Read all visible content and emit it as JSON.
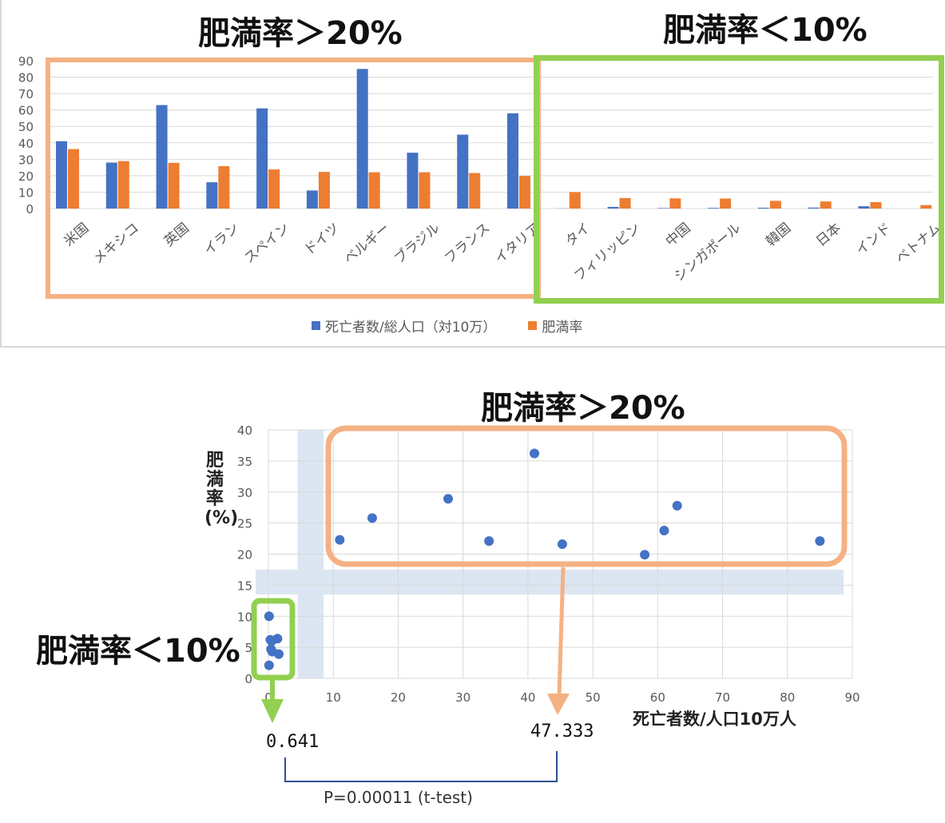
{
  "top_labels": {
    "high": "肥満率＞20%",
    "low": "肥満率＜10%"
  },
  "legend": {
    "deaths": "死亡者数/総人口（対10万）",
    "obesity": "肥満率"
  },
  "scatter_labels": {
    "high": "肥満率＞20%",
    "low": "肥満率＜10%",
    "mean_low": "0.641",
    "mean_high": "47.333",
    "pvalue": "P=0.00011 (t-test)"
  },
  "colors": {
    "deaths": "#4472c4",
    "obesity": "#ed7d31",
    "high_box": "#f4b183",
    "low_box": "#92d050",
    "band": "#dce6f2",
    "grid": "#d9d9d9",
    "tick_text": "#595959"
  },
  "chart_data": [
    {
      "type": "bar",
      "categories": [
        "米国",
        "メキシコ",
        "英国",
        "イラン",
        "スペイン",
        "ドイツ",
        "ベルギー",
        "ブラジル",
        "フランス",
        "イタリア",
        "タイ",
        "フィリッピン",
        "中国",
        "シンガポール",
        "韓国",
        "日本",
        "インド",
        "ベトナム"
      ],
      "series": [
        {
          "name": "死亡者数/総人口（対10万）",
          "values": [
            41,
            28,
            63,
            16,
            61,
            11,
            85,
            34,
            45,
            58,
            0.1,
            1,
            0.3,
            0.4,
            0.5,
            0.6,
            1.4,
            0
          ]
        },
        {
          "name": "肥満率",
          "values": [
            36.2,
            28.9,
            27.8,
            25.8,
            23.8,
            22.3,
            22.1,
            22.1,
            21.6,
            19.9,
            10,
            6.4,
            6.2,
            6.1,
            4.7,
            4.3,
            3.9,
            2.1
          ]
        }
      ],
      "ylim": [
        0,
        90
      ],
      "yticks": [
        0,
        10,
        20,
        30,
        40,
        50,
        60,
        70,
        80,
        90
      ],
      "grid": true,
      "legend_position": "bottom"
    },
    {
      "type": "scatter",
      "xlabel": "死亡者数/人口10万人",
      "ylabel": "肥満率(%)",
      "xlim": [
        0,
        90
      ],
      "ylim": [
        0,
        40
      ],
      "xticks": [
        0,
        10,
        20,
        30,
        40,
        50,
        60,
        70,
        80,
        90
      ],
      "yticks": [
        0,
        5,
        10,
        15,
        20,
        25,
        30,
        35,
        40
      ],
      "grid": true,
      "points": [
        {
          "x": 11,
          "y": 22.3
        },
        {
          "x": 16,
          "y": 25.8
        },
        {
          "x": 27.7,
          "y": 28.9
        },
        {
          "x": 34,
          "y": 22.1
        },
        {
          "x": 41,
          "y": 36.2
        },
        {
          "x": 45.3,
          "y": 21.6
        },
        {
          "x": 58,
          "y": 19.9
        },
        {
          "x": 61,
          "y": 23.8
        },
        {
          "x": 63,
          "y": 27.8
        },
        {
          "x": 85,
          "y": 22.1
        },
        {
          "x": 0.1,
          "y": 10
        },
        {
          "x": 0.3,
          "y": 6.2
        },
        {
          "x": 0.5,
          "y": 6
        },
        {
          "x": 1.4,
          "y": 6.4
        },
        {
          "x": 0.4,
          "y": 4.7
        },
        {
          "x": 0.6,
          "y": 4.3
        },
        {
          "x": 1.6,
          "y": 3.9
        },
        {
          "x": 0.1,
          "y": 2.1
        }
      ]
    }
  ]
}
